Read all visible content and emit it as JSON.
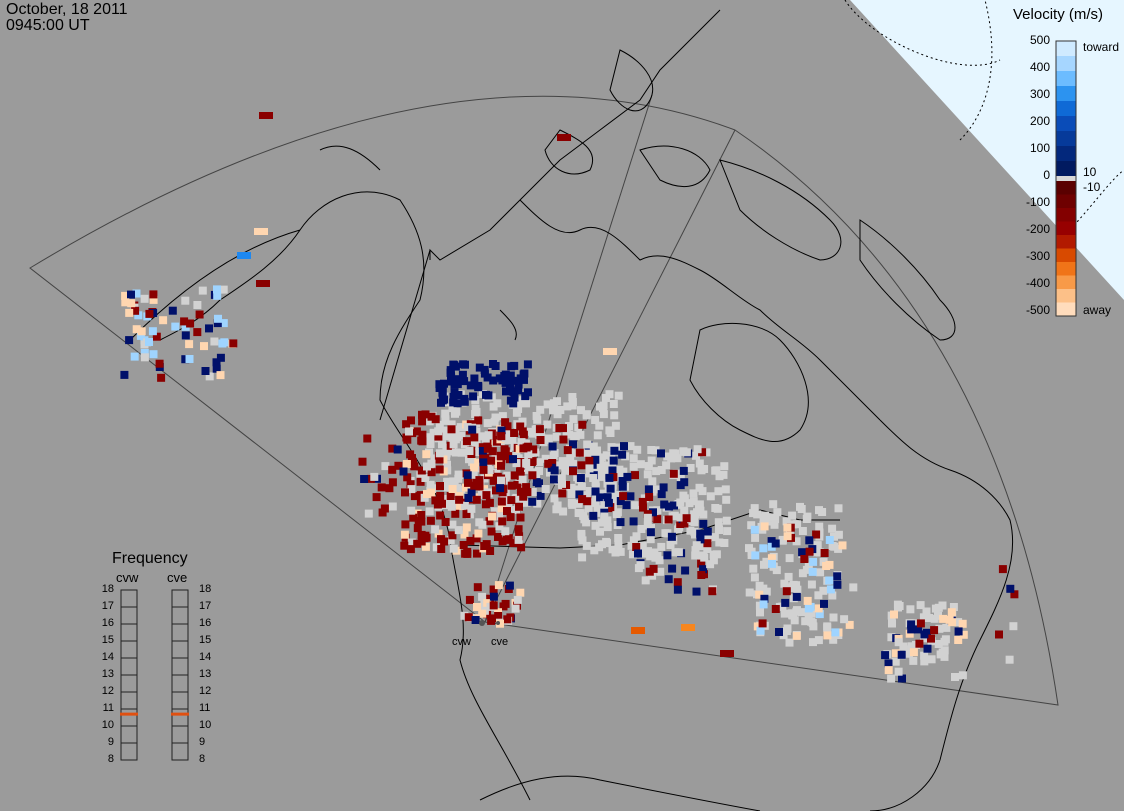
{
  "header": {
    "date": "October, 18 2011",
    "time": "0945:00 UT"
  },
  "velocity_scale": {
    "title": "Velocity (m/s)",
    "ticks": [
      "500",
      "400",
      "300",
      "200",
      "100",
      "0",
      "-100",
      "-200",
      "-300",
      "-400",
      "-500"
    ],
    "inner_ticks": [
      "10",
      "-10"
    ],
    "toward_label": "toward",
    "away_label": "away",
    "colors_toward": [
      "#d6eeff",
      "#a8d8ff",
      "#5bb2ff",
      "#1e88f0",
      "#0a5fd0",
      "#063fa6",
      "#032c86",
      "#021d66",
      "#00104f"
    ],
    "colors_away": [
      "#5e0000",
      "#7a0000",
      "#8f0000",
      "#a40000",
      "#c82a00",
      "#e65a00",
      "#f7861e",
      "#fbb46b",
      "#ffd6b0",
      "#ffe8d0"
    ],
    "ground_scatter_color": "#d2d2d2"
  },
  "frequency_panel": {
    "title": "Frequency",
    "radars": [
      "cvw",
      "cve"
    ],
    "ticks": [
      "18",
      "17",
      "16",
      "15",
      "14",
      "13",
      "12",
      "11",
      "10",
      "9",
      "8"
    ],
    "cvw_frequency": 10.7,
    "cve_frequency": 10.7,
    "indicator_color": "#e05010"
  },
  "sites": {
    "west": "cvw",
    "east": "cve"
  }
}
